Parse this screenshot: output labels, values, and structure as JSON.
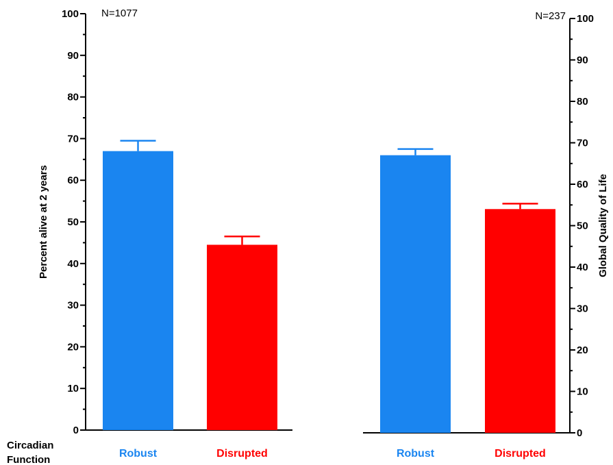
{
  "row_label_line1": "Circadian",
  "row_label_line2": "Function",
  "chart_data": [
    {
      "type": "bar",
      "panel": "left",
      "annotation": "N=1077",
      "ylabel": "Percent alive at 2 years",
      "ylim": [
        0,
        100
      ],
      "yticks": [
        0,
        10,
        20,
        30,
        40,
        50,
        60,
        70,
        80,
        90,
        100
      ],
      "categories": [
        "Robust",
        "Disrupted"
      ],
      "values": [
        67,
        44.5
      ],
      "error_upper": [
        69.5,
        46.5
      ],
      "colors": [
        "#1a85f0",
        "#ff0000"
      ]
    },
    {
      "type": "bar",
      "panel": "right",
      "annotation": "N=237",
      "ylabel": "Global Quality of Life",
      "ylim": [
        0,
        100
      ],
      "yticks": [
        0,
        10,
        20,
        30,
        40,
        50,
        60,
        70,
        80,
        90,
        100
      ],
      "categories": [
        "Robust",
        "Disrupted"
      ],
      "values": [
        67,
        54
      ],
      "error_upper": [
        68.5,
        55.3
      ],
      "colors": [
        "#1a85f0",
        "#ff0000"
      ]
    }
  ]
}
